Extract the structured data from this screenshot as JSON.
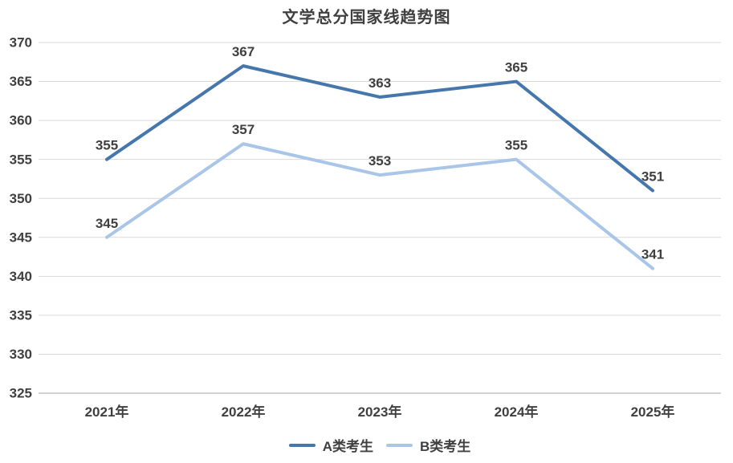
{
  "chart_data": {
    "type": "line",
    "title": "文学总分国家线趋势图",
    "categories": [
      "2021年",
      "2022年",
      "2023年",
      "2024年",
      "2025年"
    ],
    "series": [
      {
        "name": "A类考生",
        "values": [
          355,
          367,
          363,
          365,
          351
        ],
        "color": "#4577ad"
      },
      {
        "name": "B类考生",
        "values": [
          345,
          357,
          353,
          355,
          341
        ],
        "color": "#a9c6e8"
      }
    ],
    "xlabel": "",
    "ylabel": "",
    "ylim": [
      325,
      370
    ],
    "ytick_step": 5,
    "yticks": [
      325,
      330,
      335,
      340,
      345,
      350,
      355,
      360,
      365,
      370
    ],
    "grid": true,
    "data_labels": true,
    "legend_position": "bottom"
  },
  "colors": {
    "text": "#404040",
    "grid": "#d9d9d9",
    "axis": "#a6a6a6",
    "background": "#ffffff"
  }
}
